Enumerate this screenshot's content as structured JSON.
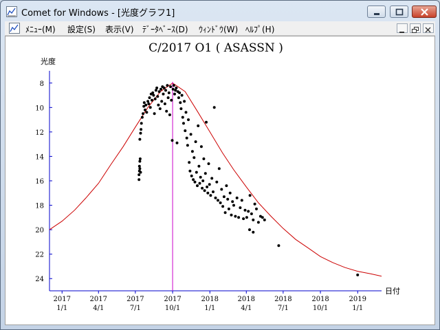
{
  "window": {
    "title": "Comet for Windows - [光度グラフ1]",
    "icon": "graph-icon"
  },
  "menu": {
    "items": [
      "ﾒﾆｭｰ(M)",
      "設定(S)",
      "表示(V)",
      "ﾃﾞｰﾀﾍﾞｰｽ(D)",
      "ｳｨﾝﾄﾞｳ(W)",
      "ﾍﾙﾌﾟ(H)"
    ]
  },
  "colors": {
    "curve": "#cc0000",
    "marker": "#cc00cc",
    "axis": "#0000cc",
    "points": "#000000"
  },
  "chart_data": {
    "type": "scatter",
    "title": "C/2017 O1 ( ASASSN )",
    "ylabel": "光度",
    "xlabel": "日付",
    "ylim": [
      25,
      7
    ],
    "y_ticks": [
      8,
      10,
      12,
      14,
      16,
      18,
      20,
      22,
      24
    ],
    "x_ticks": [
      {
        "year": "2017",
        "month": "1/1",
        "date": "2017-01-01"
      },
      {
        "year": "2017",
        "month": "4/1",
        "date": "2017-04-01"
      },
      {
        "year": "2017",
        "month": "7/1",
        "date": "2017-07-01"
      },
      {
        "year": "2017",
        "month": "10/1",
        "date": "2017-10-01"
      },
      {
        "year": "2018",
        "month": "1/1",
        "date": "2018-01-01"
      },
      {
        "year": "2018",
        "month": "4/1",
        "date": "2018-04-01"
      },
      {
        "year": "2018",
        "month": "7/1",
        "date": "2018-07-01"
      },
      {
        "year": "2018",
        "month": "10/1",
        "date": "2018-10-01"
      },
      {
        "year": "2019",
        "month": "1/1",
        "date": "2019-01-01"
      }
    ],
    "xlim": [
      "2016-12-01",
      "2019-03-01"
    ],
    "marker_date": "2017-10-01",
    "curve": [
      {
        "date": "2016-12-01",
        "mag": 20.0
      },
      {
        "date": "2017-01-01",
        "mag": 19.3
      },
      {
        "date": "2017-02-01",
        "mag": 18.4
      },
      {
        "date": "2017-03-01",
        "mag": 17.4
      },
      {
        "date": "2017-04-01",
        "mag": 16.2
      },
      {
        "date": "2017-05-01",
        "mag": 14.7
      },
      {
        "date": "2017-06-01",
        "mag": 13.2
      },
      {
        "date": "2017-07-01",
        "mag": 11.6
      },
      {
        "date": "2017-08-01",
        "mag": 10.0
      },
      {
        "date": "2017-09-01",
        "mag": 8.7
      },
      {
        "date": "2017-10-01",
        "mag": 8.0
      },
      {
        "date": "2017-11-01",
        "mag": 8.7
      },
      {
        "date": "2017-12-01",
        "mag": 10.3
      },
      {
        "date": "2018-01-01",
        "mag": 12.0
      },
      {
        "date": "2018-02-01",
        "mag": 13.7
      },
      {
        "date": "2018-03-01",
        "mag": 15.1
      },
      {
        "date": "2018-04-01",
        "mag": 16.5
      },
      {
        "date": "2018-05-01",
        "mag": 17.8
      },
      {
        "date": "2018-06-01",
        "mag": 18.9
      },
      {
        "date": "2018-07-01",
        "mag": 19.9
      },
      {
        "date": "2018-08-01",
        "mag": 20.8
      },
      {
        "date": "2018-09-01",
        "mag": 21.5
      },
      {
        "date": "2018-10-01",
        "mag": 22.2
      },
      {
        "date": "2018-11-01",
        "mag": 22.7
      },
      {
        "date": "2018-12-01",
        "mag": 23.1
      },
      {
        "date": "2019-01-01",
        "mag": 23.4
      },
      {
        "date": "2019-02-01",
        "mag": 23.6
      },
      {
        "date": "2019-03-01",
        "mag": 23.8
      }
    ],
    "points": [
      [
        "2017-07-10",
        15.9
      ],
      [
        "2017-07-10",
        15.5
      ],
      [
        "2017-07-11",
        15.2
      ],
      [
        "2017-07-11",
        14.8
      ],
      [
        "2017-07-12",
        14.4
      ],
      [
        "2017-07-12",
        15.0
      ],
      [
        "2017-07-13",
        14.2
      ],
      [
        "2017-07-14",
        15.3
      ],
      [
        "2017-07-12",
        12.6
      ],
      [
        "2017-07-14",
        12.1
      ],
      [
        "2017-07-15",
        11.8
      ],
      [
        "2017-07-16",
        11.3
      ],
      [
        "2017-07-18",
        10.8
      ],
      [
        "2017-07-20",
        10.5
      ],
      [
        "2017-07-22",
        9.9
      ],
      [
        "2017-07-23",
        9.6
      ],
      [
        "2017-07-25",
        10.2
      ],
      [
        "2017-07-27",
        9.8
      ],
      [
        "2017-07-29",
        10.4
      ],
      [
        "2017-08-01",
        9.5
      ],
      [
        "2017-08-03",
        9.7
      ],
      [
        "2017-08-05",
        9.2
      ],
      [
        "2017-08-07",
        10.0
      ],
      [
        "2017-08-09",
        8.9
      ],
      [
        "2017-08-11",
        9.4
      ],
      [
        "2017-08-13",
        8.8
      ],
      [
        "2017-08-15",
        9.0
      ],
      [
        "2017-08-17",
        10.5
      ],
      [
        "2017-08-19",
        9.3
      ],
      [
        "2017-08-21",
        8.6
      ],
      [
        "2017-08-23",
        8.4
      ],
      [
        "2017-08-25",
        9.1
      ],
      [
        "2017-08-27",
        9.8
      ],
      [
        "2017-08-29",
        8.7
      ],
      [
        "2017-08-31",
        10.1
      ],
      [
        "2017-09-02",
        8.5
      ],
      [
        "2017-09-04",
        9.5
      ],
      [
        "2017-09-06",
        8.3
      ],
      [
        "2017-09-08",
        8.9
      ],
      [
        "2017-09-10",
        8.4
      ],
      [
        "2017-09-12",
        9.7
      ],
      [
        "2017-09-14",
        8.6
      ],
      [
        "2017-09-16",
        10.3
      ],
      [
        "2017-09-18",
        8.2
      ],
      [
        "2017-09-20",
        9.2
      ],
      [
        "2017-09-22",
        8.8
      ],
      [
        "2017-09-24",
        10.6
      ],
      [
        "2017-09-26",
        8.3
      ],
      [
        "2017-09-28",
        9.4
      ],
      [
        "2017-09-30",
        12.7
      ],
      [
        "2017-10-02",
        8.5
      ],
      [
        "2017-10-04",
        8.2
      ],
      [
        "2017-10-06",
        8.9
      ],
      [
        "2017-10-08",
        8.6
      ],
      [
        "2017-10-10",
        8.4
      ],
      [
        "2017-10-12",
        12.9
      ],
      [
        "2017-10-14",
        8.7
      ],
      [
        "2017-10-16",
        9.2
      ],
      [
        "2017-10-18",
        8.8
      ],
      [
        "2017-10-20",
        9.6
      ],
      [
        "2017-10-22",
        10.1
      ],
      [
        "2017-10-24",
        9.0
      ],
      [
        "2017-10-26",
        10.8
      ],
      [
        "2017-10-28",
        11.3
      ],
      [
        "2017-10-30",
        9.5
      ],
      [
        "2017-11-01",
        11.9
      ],
      [
        "2017-11-03",
        10.4
      ],
      [
        "2017-11-05",
        12.5
      ],
      [
        "2017-11-07",
        13.1
      ],
      [
        "2017-11-09",
        11.0
      ],
      [
        "2017-11-11",
        14.5
      ],
      [
        "2017-11-13",
        15.2
      ],
      [
        "2017-11-15",
        12.2
      ],
      [
        "2017-11-17",
        15.6
      ],
      [
        "2017-11-19",
        13.6
      ],
      [
        "2017-11-21",
        15.9
      ],
      [
        "2017-11-23",
        14.1
      ],
      [
        "2017-11-25",
        16.1
      ],
      [
        "2017-11-27",
        12.8
      ],
      [
        "2017-11-29",
        15.3
      ],
      [
        "2017-12-01",
        16.4
      ],
      [
        "2017-12-03",
        11.5
      ],
      [
        "2017-12-05",
        14.8
      ],
      [
        "2017-12-07",
        16.2
      ],
      [
        "2017-12-09",
        15.7
      ],
      [
        "2017-12-11",
        13.2
      ],
      [
        "2017-12-13",
        16.6
      ],
      [
        "2017-12-15",
        16.0
      ],
      [
        "2017-12-17",
        14.2
      ],
      [
        "2017-12-19",
        16.8
      ],
      [
        "2017-12-21",
        15.4
      ],
      [
        "2017-12-23",
        11.2
      ],
      [
        "2017-12-25",
        16.5
      ],
      [
        "2017-12-27",
        17.0
      ],
      [
        "2017-12-29",
        14.6
      ],
      [
        "2017-12-31",
        16.3
      ],
      [
        "2018-01-03",
        17.2
      ],
      [
        "2018-01-06",
        15.8
      ],
      [
        "2018-01-09",
        16.9
      ],
      [
        "2018-01-12",
        10.0
      ],
      [
        "2018-01-15",
        17.4
      ],
      [
        "2018-01-18",
        16.1
      ],
      [
        "2018-01-21",
        17.6
      ],
      [
        "2018-01-24",
        15.0
      ],
      [
        "2018-01-27",
        17.8
      ],
      [
        "2018-01-30",
        16.7
      ],
      [
        "2018-02-02",
        18.1
      ],
      [
        "2018-02-05",
        17.3
      ],
      [
        "2018-02-08",
        18.6
      ],
      [
        "2018-02-11",
        16.4
      ],
      [
        "2018-02-14",
        17.5
      ],
      [
        "2018-02-17",
        18.3
      ],
      [
        "2018-02-20",
        17.0
      ],
      [
        "2018-02-23",
        18.8
      ],
      [
        "2018-02-26",
        17.7
      ],
      [
        "2018-03-01",
        18.0
      ],
      [
        "2018-03-05",
        18.9
      ],
      [
        "2018-03-09",
        17.4
      ],
      [
        "2018-03-13",
        19.0
      ],
      [
        "2018-03-17",
        18.2
      ],
      [
        "2018-03-21",
        17.6
      ],
      [
        "2018-03-25",
        19.1
      ],
      [
        "2018-03-29",
        18.4
      ],
      [
        "2018-04-02",
        19.0
      ],
      [
        "2018-04-06",
        18.5
      ],
      [
        "2018-04-10",
        17.2
      ],
      [
        "2018-04-14",
        18.7
      ],
      [
        "2018-04-18",
        19.2
      ],
      [
        "2018-04-22",
        17.9
      ],
      [
        "2018-04-26",
        18.3
      ],
      [
        "2018-05-01",
        19.4
      ],
      [
        "2018-05-06",
        18.9
      ],
      [
        "2018-05-11",
        19.0
      ],
      [
        "2018-05-16",
        19.2
      ],
      [
        "2018-04-09",
        20.0
      ],
      [
        "2018-04-18",
        20.2
      ],
      [
        "2018-06-20",
        21.3
      ],
      [
        "2019-01-01",
        23.7
      ]
    ]
  }
}
